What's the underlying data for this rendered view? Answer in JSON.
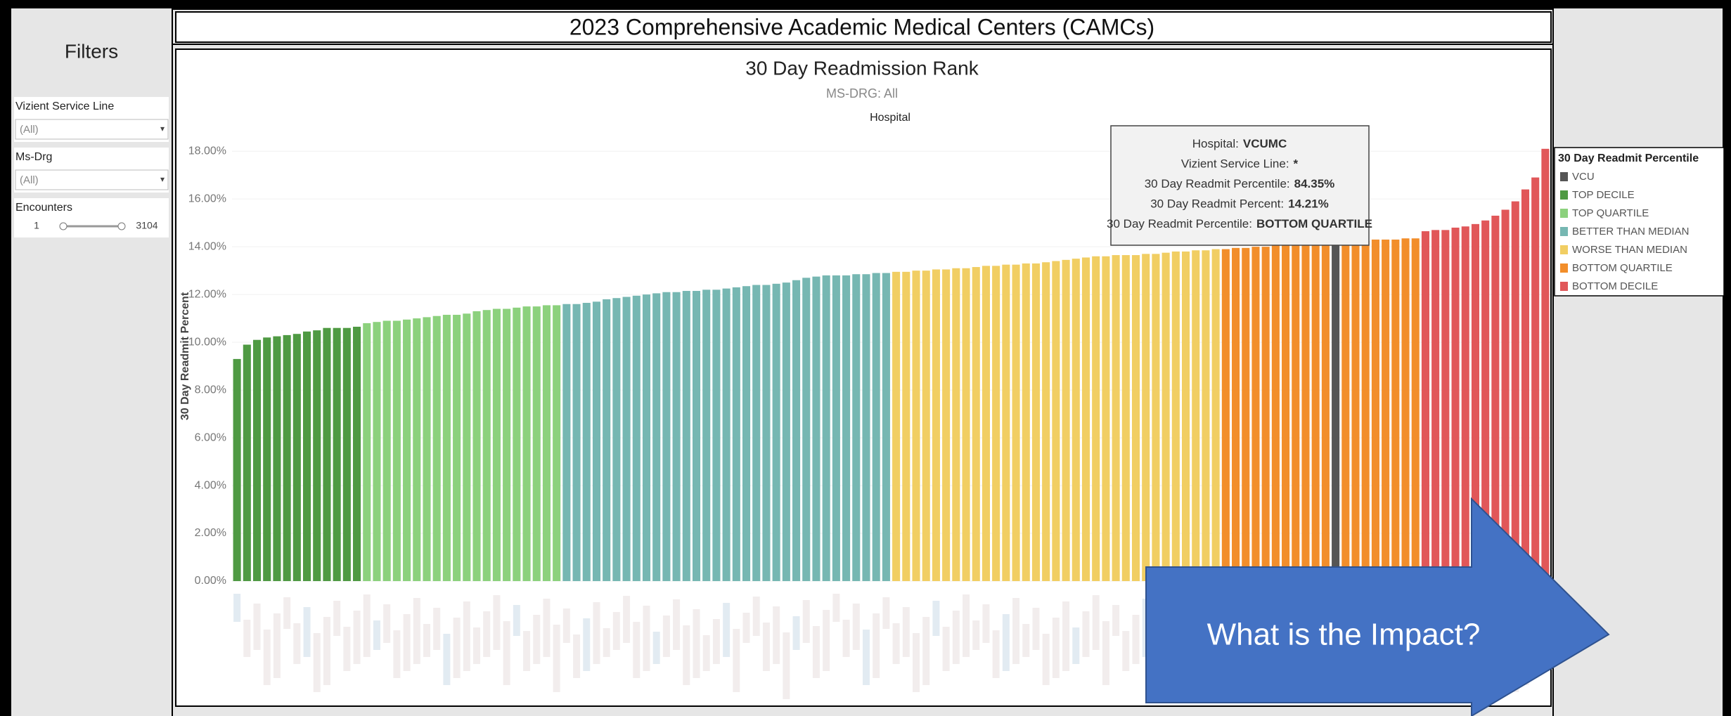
{
  "dashboard": {
    "title": "2023 Comprehensive Academic Medical Centers (CAMCs)",
    "filters": {
      "heading": "Filters",
      "fields": [
        {
          "label": "Vizient Service Line",
          "value": "(All)"
        },
        {
          "label": "Ms-Drg",
          "value": "(All)"
        }
      ],
      "encounters": {
        "label": "Encounters",
        "min": 1,
        "max": 3104
      }
    },
    "tooltip": {
      "rows": [
        {
          "label": "Hospital:",
          "value": "VCUMC"
        },
        {
          "label": "Vizient Service Line:",
          "value": "*"
        },
        {
          "label": "30 Day Readmit Percentile:",
          "value": "84.35%"
        },
        {
          "label": "30 Day Readmit Percent:",
          "value": "14.21%"
        },
        {
          "label": "30 Day Readmit Percentile:",
          "value": "BOTTOM QUARTILE"
        }
      ]
    },
    "callout": "What is the Impact?"
  },
  "chart_data": {
    "type": "bar",
    "title": "30 Day Readmission Rank",
    "subtitle": "MS-DRG: All",
    "x_label": "Hospital",
    "y_label": "30 Day Readmit Percent",
    "legend_title": "30 Day Readmit Percentile",
    "legend": "right",
    "grid": true,
    "xlim": [
      0.5,
      132.5
    ],
    "ylim": [
      0,
      18.8
    ],
    "yticks": [
      {
        "value": 0,
        "label": "0.00%"
      },
      {
        "value": 2,
        "label": "2.00%"
      },
      {
        "value": 4,
        "label": "4.00%"
      },
      {
        "value": 6,
        "label": "6.00%"
      },
      {
        "value": 8,
        "label": "8.00%"
      },
      {
        "value": 10,
        "label": "10.00%"
      },
      {
        "value": 12,
        "label": "12.00%"
      },
      {
        "value": 14,
        "label": "14.00%"
      },
      {
        "value": 16,
        "label": "16.00%"
      },
      {
        "value": 18,
        "label": "18.00%"
      }
    ],
    "series": [
      {
        "name": "VCU",
        "color": "#555555",
        "x": [
          111
        ],
        "values": [
          14.21
        ]
      },
      {
        "name": "TOP DECILE",
        "color": "#4f9a43",
        "x": [
          1,
          2,
          3,
          4,
          5,
          6,
          7,
          8,
          9,
          10,
          11,
          12,
          13
        ],
        "values": [
          9.3,
          9.9,
          10.1,
          10.2,
          10.25,
          10.3,
          10.35,
          10.45,
          10.5,
          10.6,
          10.6,
          10.6,
          10.65
        ]
      },
      {
        "name": "TOP QUARTILE",
        "color": "#8cd17d",
        "x": [
          14,
          15,
          16,
          17,
          18,
          19,
          20,
          21,
          22,
          23,
          24,
          25,
          26,
          27,
          28,
          29,
          30,
          31,
          32,
          33
        ],
        "values": [
          10.8,
          10.85,
          10.9,
          10.9,
          10.95,
          11.0,
          11.05,
          11.1,
          11.15,
          11.15,
          11.2,
          11.3,
          11.35,
          11.4,
          11.4,
          11.45,
          11.5,
          11.5,
          11.55,
          11.55
        ]
      },
      {
        "name": "BETTER THAN MEDIAN",
        "color": "#76b7b2",
        "x": [
          34,
          35,
          36,
          37,
          38,
          39,
          40,
          41,
          42,
          43,
          44,
          45,
          46,
          47,
          48,
          49,
          50,
          51,
          52,
          53,
          54,
          55,
          56,
          57,
          58,
          59,
          60,
          61,
          62,
          63,
          64,
          65,
          66
        ],
        "values": [
          11.6,
          11.6,
          11.65,
          11.7,
          11.8,
          11.85,
          11.9,
          11.95,
          12.0,
          12.05,
          12.1,
          12.1,
          12.15,
          12.15,
          12.2,
          12.2,
          12.25,
          12.3,
          12.35,
          12.4,
          12.4,
          12.45,
          12.5,
          12.6,
          12.7,
          12.75,
          12.8,
          12.8,
          12.8,
          12.85,
          12.85,
          12.9,
          12.9
        ]
      },
      {
        "name": "WORSE THAN MEDIAN",
        "color": "#f1ce63",
        "x": [
          67,
          68,
          69,
          70,
          71,
          72,
          73,
          74,
          75,
          76,
          77,
          78,
          79,
          80,
          81,
          82,
          83,
          84,
          85,
          86,
          87,
          88,
          89,
          90,
          91,
          92,
          93,
          94,
          95,
          96,
          97,
          98,
          99
        ],
        "values": [
          12.95,
          12.95,
          13.0,
          13.0,
          13.05,
          13.05,
          13.1,
          13.1,
          13.15,
          13.2,
          13.2,
          13.25,
          13.25,
          13.3,
          13.3,
          13.35,
          13.4,
          13.45,
          13.5,
          13.55,
          13.6,
          13.6,
          13.65,
          13.65,
          13.65,
          13.7,
          13.7,
          13.75,
          13.8,
          13.8,
          13.85,
          13.85,
          13.9
        ]
      },
      {
        "name": "BOTTOM QUARTILE",
        "color": "#f28e2b",
        "x": [
          100,
          101,
          102,
          103,
          104,
          105,
          106,
          107,
          108,
          109,
          110,
          112,
          113,
          114,
          115,
          116,
          117,
          118,
          119
        ],
        "values": [
          13.9,
          13.95,
          13.95,
          14.0,
          14.0,
          14.05,
          14.1,
          14.1,
          14.15,
          14.15,
          14.2,
          14.25,
          14.25,
          14.25,
          14.3,
          14.3,
          14.3,
          14.35,
          14.35
        ]
      },
      {
        "name": "BOTTOM DECILE",
        "color": "#e15759",
        "x": [
          120,
          121,
          122,
          123,
          124,
          125,
          126,
          127,
          128,
          129,
          130,
          131,
          132
        ],
        "values": [
          14.65,
          14.7,
          14.7,
          14.8,
          14.85,
          14.95,
          15.1,
          15.3,
          15.55,
          15.9,
          16.4,
          16.9,
          18.1
        ]
      }
    ]
  }
}
